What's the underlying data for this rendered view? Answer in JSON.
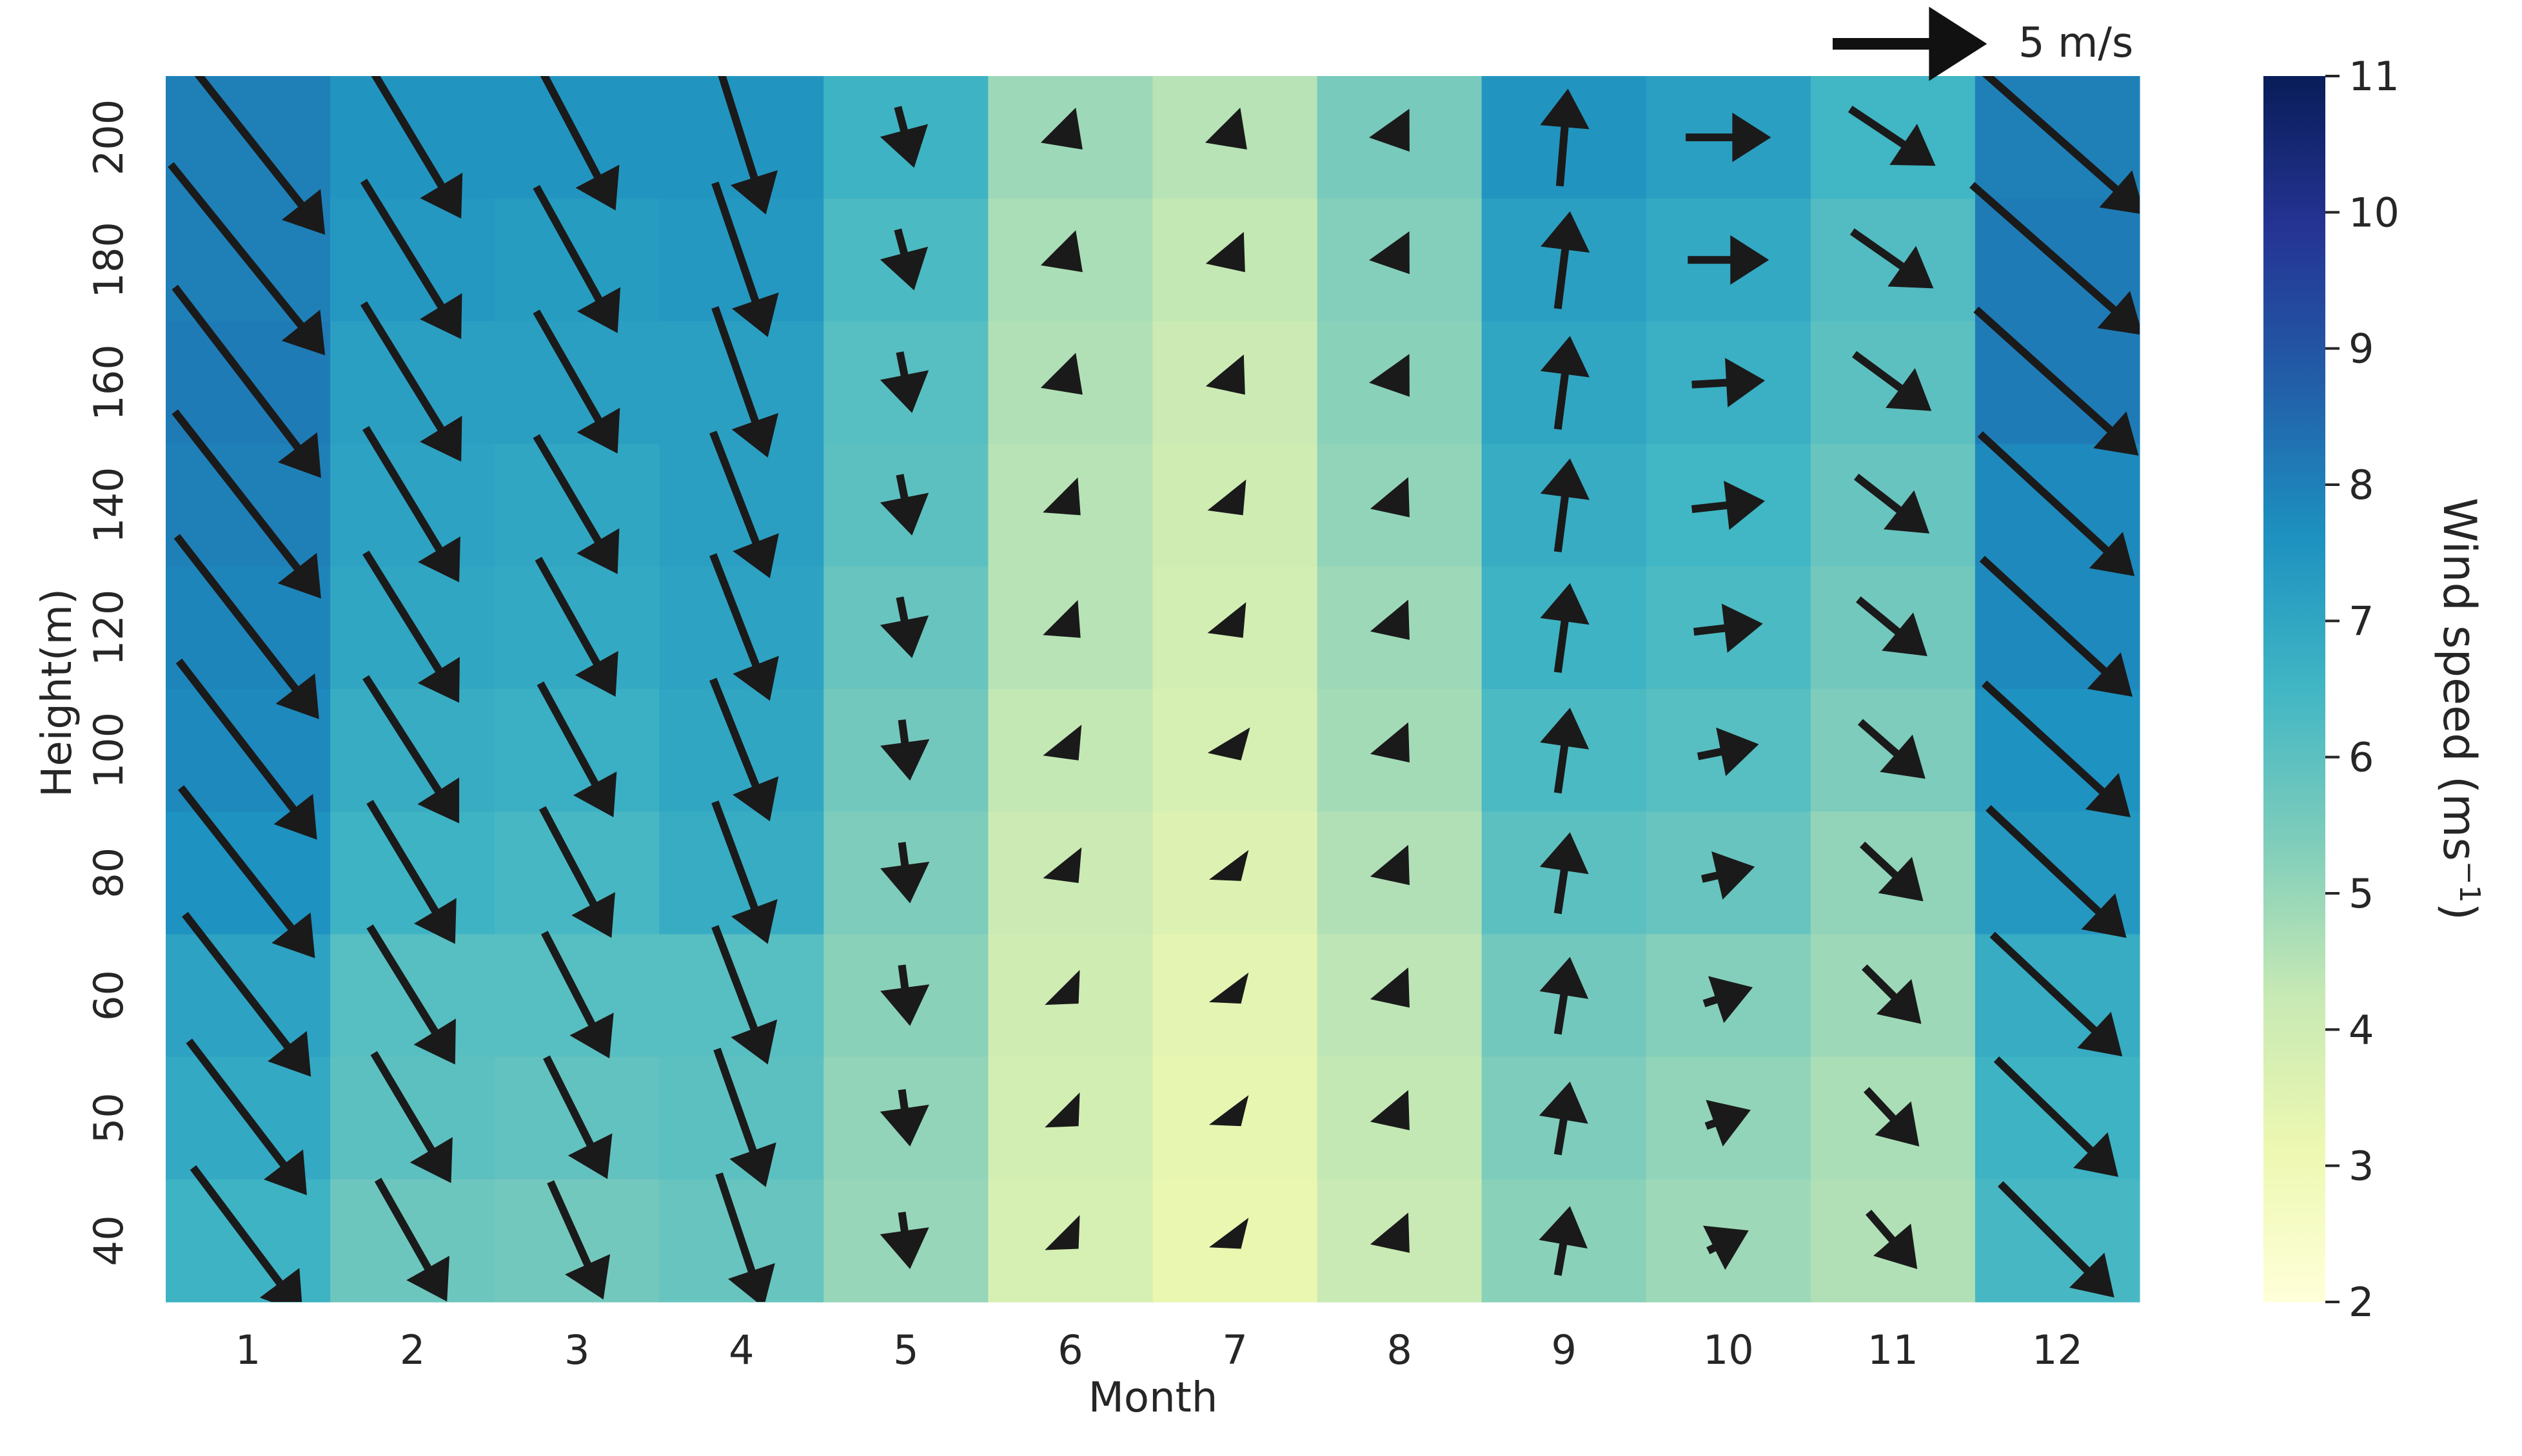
{
  "chart_data": {
    "type": "heatmap",
    "subtype": "heatmap with wind vector quiver overlay",
    "xlabel": "Month",
    "ylabel": "Height(m)",
    "colorbar": {
      "label": "Wind speed (ms",
      "label_superscript": "−1",
      "label_suffix": ")",
      "range": [
        2,
        11
      ],
      "ticks": [
        "2",
        "3",
        "4",
        "5",
        "6",
        "7",
        "8",
        "9",
        "10",
        "11"
      ],
      "colormap": "YlGnBu",
      "colormap_stops": [
        "#ffffd9",
        "#edf8b1",
        "#c7e9b4",
        "#7fcdbb",
        "#41b6c4",
        "#1d91c0",
        "#225ea8",
        "#253494",
        "#081d58"
      ]
    },
    "quiver_key": {
      "label": "5 m/s",
      "magnitude": 5
    },
    "x_categories": [
      "1",
      "2",
      "3",
      "4",
      "5",
      "6",
      "7",
      "8",
      "9",
      "10",
      "11",
      "12"
    ],
    "y_categories": [
      "200",
      "180",
      "160",
      "140",
      "120",
      "100",
      "80",
      "60",
      "50",
      "40"
    ],
    "grid": false,
    "speed": [
      [
        8.0,
        7.5,
        7.5,
        7.5,
        6.6,
        4.9,
        4.5,
        5.5,
        7.5,
        7.2,
        6.5,
        8.0
      ],
      [
        8.0,
        7.4,
        7.3,
        7.4,
        6.3,
        4.7,
        4.3,
        5.3,
        7.2,
        6.9,
        6.2,
        8.1
      ],
      [
        8.1,
        7.2,
        7.2,
        7.2,
        6.1,
        4.6,
        4.1,
        5.2,
        7.0,
        6.7,
        6.0,
        8.1
      ],
      [
        8.0,
        7.1,
        7.0,
        7.2,
        6.0,
        4.5,
        4.0,
        5.1,
        6.8,
        6.5,
        5.8,
        7.8
      ],
      [
        7.9,
        7.0,
        6.9,
        7.1,
        5.8,
        4.5,
        3.9,
        4.9,
        6.6,
        6.3,
        5.6,
        7.8
      ],
      [
        7.8,
        6.8,
        6.7,
        7.0,
        5.6,
        4.3,
        3.8,
        4.8,
        6.3,
        6.1,
        5.4,
        7.6
      ],
      [
        7.6,
        6.6,
        6.4,
        6.8,
        5.4,
        4.1,
        3.6,
        4.6,
        6.0,
        5.8,
        5.1,
        7.4
      ],
      [
        7.1,
        6.1,
        6.1,
        6.1,
        5.2,
        4.0,
        3.4,
        4.4,
        5.6,
        5.3,
        4.9,
        6.8
      ],
      [
        6.9,
        6.0,
        5.9,
        6.0,
        5.1,
        3.9,
        3.3,
        4.3,
        5.4,
        5.1,
        4.7,
        6.6
      ],
      [
        6.6,
        5.7,
        5.6,
        5.8,
        5.0,
        3.8,
        3.2,
        4.2,
        5.2,
        4.9,
        4.6,
        6.4
      ]
    ],
    "u": [
      [
        3.8,
        2.4,
        1.9,
        1.2,
        0.4,
        0.6,
        0.6,
        0.5,
        0.2,
        2.1,
        2.1,
        4.3
      ],
      [
        3.8,
        2.4,
        2.0,
        1.3,
        0.4,
        0.6,
        0.5,
        0.5,
        0.3,
        2.0,
        2.0,
        4.2
      ],
      [
        3.6,
        2.4,
        2.0,
        1.3,
        0.3,
        0.6,
        0.5,
        0.5,
        0.3,
        1.8,
        1.9,
        4.0
      ],
      [
        3.6,
        2.3,
        2.0,
        1.4,
        0.3,
        0.5,
        0.4,
        0.5,
        0.3,
        1.8,
        1.8,
        3.8
      ],
      [
        3.5,
        2.3,
        1.9,
        1.4,
        0.3,
        0.5,
        0.4,
        0.5,
        0.3,
        1.7,
        1.7,
        3.7
      ],
      [
        3.4,
        2.3,
        1.8,
        1.4,
        0.2,
        0.4,
        0.3,
        0.5,
        0.3,
        1.5,
        1.6,
        3.6
      ],
      [
        3.3,
        2.1,
        1.7,
        1.3,
        0.2,
        0.4,
        0.3,
        0.5,
        0.3,
        1.3,
        1.5,
        3.4
      ],
      [
        3.1,
        2.1,
        1.6,
        1.3,
        0.2,
        0.4,
        0.3,
        0.5,
        0.3,
        1.2,
        1.4,
        3.2
      ],
      [
        2.9,
        1.9,
        1.5,
        1.2,
        0.2,
        0.4,
        0.3,
        0.5,
        0.3,
        1.1,
        1.3,
        3.0
      ],
      [
        2.7,
        1.7,
        1.3,
        1.1,
        0.2,
        0.4,
        0.3,
        0.5,
        0.3,
        1.0,
        1.2,
        2.8
      ]
    ],
    "v": [
      [
        -4.8,
        -4.0,
        -3.6,
        -3.8,
        -1.5,
        -0.6,
        -0.6,
        -0.7,
        2.4,
        0.0,
        -1.4,
        -3.8
      ],
      [
        -4.7,
        -3.9,
        -3.6,
        -3.8,
        -1.5,
        -0.6,
        -0.6,
        -0.7,
        2.4,
        0.0,
        -1.4,
        -3.7
      ],
      [
        -4.7,
        -3.9,
        -3.5,
        -3.7,
        -1.5,
        -0.6,
        -0.6,
        -0.7,
        2.3,
        0.1,
        -1.4,
        -3.6
      ],
      [
        -4.6,
        -3.8,
        -3.4,
        -3.6,
        -1.5,
        -0.5,
        -0.5,
        -0.6,
        2.3,
        0.2,
        -1.4,
        -3.5
      ],
      [
        -4.5,
        -3.7,
        -3.4,
        -3.6,
        -1.5,
        -0.5,
        -0.5,
        -0.6,
        2.2,
        0.2,
        -1.4,
        -3.4
      ],
      [
        -4.4,
        -3.6,
        -3.3,
        -3.5,
        -1.5,
        -0.5,
        -0.5,
        -0.6,
        2.1,
        0.3,
        -1.4,
        -3.3
      ],
      [
        -4.2,
        -3.5,
        -3.2,
        -3.5,
        -1.5,
        -0.5,
        -0.4,
        -0.6,
        2.0,
        0.3,
        -1.4,
        -3.2
      ],
      [
        -4.0,
        -3.4,
        -3.1,
        -3.4,
        -1.5,
        -0.4,
        -0.4,
        -0.6,
        1.9,
        0.4,
        -1.4,
        -3.0
      ],
      [
        -3.8,
        -3.2,
        -3.0,
        -3.4,
        -1.4,
        -0.4,
        -0.4,
        -0.6,
        1.8,
        0.4,
        -1.4,
        -2.9
      ],
      [
        -3.6,
        -3.0,
        -2.9,
        -3.3,
        -1.4,
        -0.4,
        -0.4,
        -0.6,
        1.7,
        0.5,
        -1.4,
        -2.8
      ]
    ]
  }
}
